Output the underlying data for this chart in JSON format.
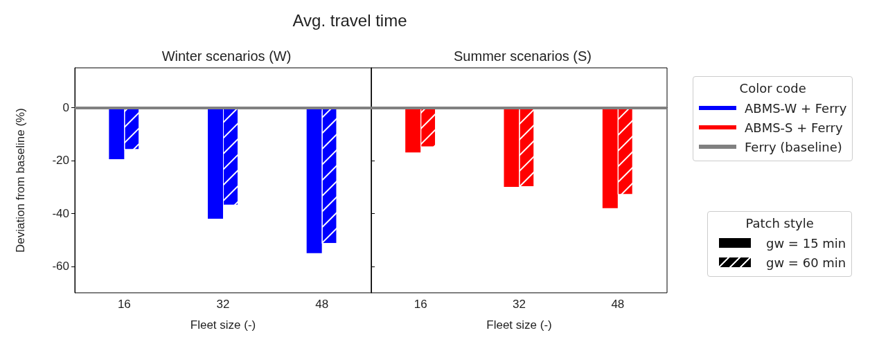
{
  "chart_data": [
    {
      "type": "bar",
      "title": "Avg. travel time",
      "subtitle": "Winter scenarios (W)",
      "xlabel": "Fleet size (-)",
      "ylabel": "Deviation from baseline (%)",
      "categories": [
        "16",
        "32",
        "48"
      ],
      "series": [
        {
          "name": "ABMS-W + Ferry",
          "color": "#0000ff",
          "values": [
            -19.5,
            -42,
            -55
          ]
        },
        {
          "color": "#0000ff",
          "values": [
            -16,
            -37,
            -51.5
          ]
        }
      ],
      "ylim": [
        -70,
        15
      ],
      "yticks": [
        -60,
        -40,
        -20,
        0
      ],
      "ref_lines": [
        {
          "axis": "y",
          "value": 0,
          "label": "Ferry (baseline)",
          "color": "#808080"
        }
      ],
      "legend": "right",
      "legend_title": "Color code"
    },
    {
      "type": "bar",
      "subtitle": "Summer scenarios (S)",
      "xlabel": "Fleet size (-)",
      "categories": [
        "16",
        "32",
        "48"
      ],
      "series": [
        {
          "name": "ABMS-S + Ferry",
          "color": "#ff0000",
          "values": [
            -17,
            -30,
            -38
          ]
        },
        {
          "color": "#ff0000",
          "values": [
            -15,
            -30,
            -33
          ]
        }
      ],
      "ylim": [
        -70,
        15
      ],
      "yticks": [
        -60,
        -40,
        -20,
        0
      ],
      "tick_labels": "x",
      "ref_lines": [
        {
          "axis": "y",
          "value": 0,
          "color": "#808080"
        }
      ]
    },
    {
      "type": "other",
      "title": "Patch style",
      "annotations": [
        "gw = 15 min",
        "gw = 60 min"
      ]
    }
  ]
}
